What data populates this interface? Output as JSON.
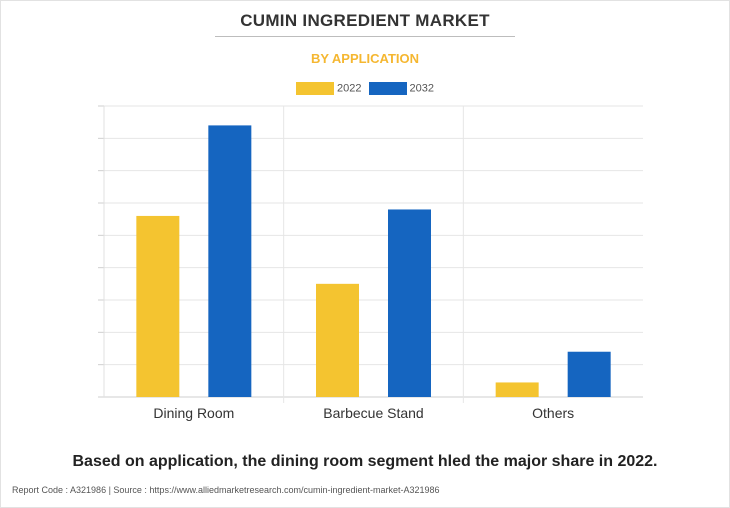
{
  "header": {
    "title": "CUMIN INGREDIENT MARKET",
    "subtitle": "BY APPLICATION"
  },
  "chart_data": {
    "type": "bar",
    "categories": [
      "Dining Room",
      "Barbecue Stand",
      "Others"
    ],
    "series": [
      {
        "name": "2022",
        "color": "#f4c430",
        "values": [
          5.6,
          3.5,
          0.45
        ]
      },
      {
        "name": "2032",
        "color": "#1565c0",
        "values": [
          8.4,
          5.8,
          1.4
        ]
      }
    ],
    "ylim": [
      0,
      9
    ],
    "grid": true,
    "legend_position": "top-center",
    "xlabel": "",
    "ylabel": ""
  },
  "caption": "Based on application, the dining room segment hled the major share in 2022.",
  "footer": {
    "text": "Report Code : A321986  |  Source : https://www.alliedmarketresearch.com/cumin-ingredient-market-A321986"
  }
}
